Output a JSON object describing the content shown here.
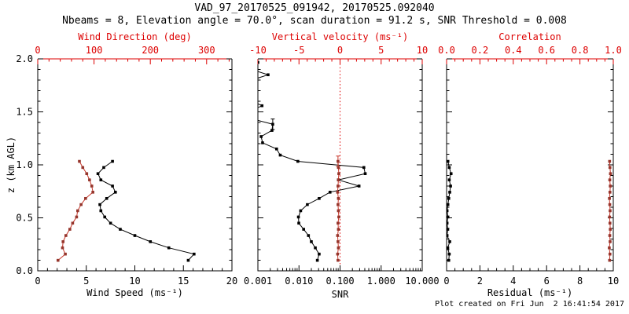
{
  "title": "VAD_97_20170525_091942, 20170525.092040",
  "subtitle": "Nbeams = 8, Elevation angle = 70.0°, scan duration = 91.2 s, SNR Threshold = 0.008",
  "footer": "Plot created on Fri Jun  2 16:41:54 2017",
  "colors": {
    "axis_red": "#dd0000",
    "series_red_line": "#c8372a",
    "series_red_marker": "#96352c",
    "black": "#000000",
    "background": "#ffffff"
  },
  "y_axis": {
    "label": "z (km AGL)",
    "range": [
      0,
      2
    ],
    "ticks": [
      0,
      0.5,
      1,
      1.5,
      2
    ],
    "tick_labels": [
      "0.0",
      "0.5",
      "1.0",
      "1.5",
      "2.0"
    ],
    "minor_step": 0.1
  },
  "chart_data": [
    {
      "name": "wind-panel",
      "type": "line",
      "x_bottom": {
        "label": "Wind Speed (ms⁻¹)",
        "range": [
          0,
          20
        ],
        "ticks": [
          0,
          5,
          10,
          15,
          20
        ],
        "tick_labels": [
          "0",
          "5",
          "10",
          "15",
          "20"
        ],
        "minor_step": 1,
        "color": "black"
      },
      "x_top": {
        "label": "Wind Direction (deg)",
        "range": [
          0,
          345
        ],
        "ticks": [
          0,
          100,
          200,
          300
        ],
        "tick_labels": [
          "0",
          "100",
          "200",
          "300"
        ],
        "minor_step": 20,
        "color": "red"
      },
      "series": [
        {
          "name": "wind-speed",
          "axis": "bottom",
          "color": "black",
          "z": [
            0.099,
            0.158,
            0.217,
            0.275,
            0.333,
            0.392,
            0.45,
            0.508,
            0.567,
            0.625,
            0.683,
            0.742,
            0.8,
            0.858,
            0.917,
            0.975,
            1.033
          ],
          "values": [
            15.5,
            16.1,
            13.5,
            11.6,
            10.0,
            8.5,
            7.5,
            6.9,
            6.5,
            6.4,
            7.1,
            8.0,
            7.7,
            6.5,
            6.2,
            6.8,
            7.7
          ]
        },
        {
          "name": "wind-direction",
          "axis": "top",
          "color": "red",
          "z": [
            0.099,
            0.158,
            0.217,
            0.275,
            0.333,
            0.392,
            0.45,
            0.508,
            0.567,
            0.625,
            0.683,
            0.742,
            0.8,
            0.858,
            0.917,
            0.975,
            1.033
          ],
          "values": [
            36,
            49,
            44,
            45,
            50,
            57,
            62,
            69,
            71,
            77,
            85,
            98,
            96,
            92,
            87,
            80,
            74
          ]
        }
      ]
    },
    {
      "name": "snr-panel",
      "type": "line",
      "x_bottom": {
        "label": "SNR",
        "scale": "log",
        "range": [
          0.001,
          10
        ],
        "ticks": [
          0.001,
          0.01,
          0.1,
          1,
          10
        ],
        "tick_labels": [
          "0.001",
          "0.010",
          "0.100",
          "1.000",
          "10.000"
        ],
        "color": "black"
      },
      "x_top": {
        "label": "Vertical velocity (ms⁻¹)",
        "range": [
          -10,
          10
        ],
        "ticks": [
          -10,
          -5,
          0,
          5,
          10
        ],
        "tick_labels": [
          "-10",
          "-5",
          "0",
          "5",
          "10"
        ],
        "minor_step": 1,
        "color": "red"
      },
      "zero_line": {
        "axis": "top",
        "value": 0,
        "style": "dotted",
        "color": "red"
      },
      "series": [
        {
          "name": "snr",
          "axis": "bottom",
          "color": "black",
          "z": [
            0.099,
            0.158,
            0.217,
            0.275,
            0.333,
            0.392,
            0.45,
            0.508,
            0.567,
            0.625,
            0.683,
            0.742,
            0.8,
            0.858,
            0.917,
            0.975,
            1.033,
            1.092,
            1.15,
            1.208,
            1.267,
            1.325,
            1.383,
            1.442,
            1.5,
            1.558,
            1.617,
            1.675,
            1.733,
            1.792,
            1.85,
            1.908,
            1.967
          ],
          "values": [
            0.028,
            0.031,
            0.025,
            0.02,
            0.017,
            0.013,
            0.0099,
            0.0097,
            0.011,
            0.016,
            0.031,
            0.057,
            0.29,
            0.091,
            0.41,
            0.38,
            0.0094,
            0.0035,
            0.00285,
            0.0013,
            0.0012,
            0.0022,
            0.0023,
            0.0006,
            0.0006,
            0.00126,
            0.0006,
            0.0006,
            0.0006,
            0.0006,
            0.00177,
            0.0006,
            0.001
          ],
          "error_bars": [
            {
              "z": 1.383,
              "value": 0.0023,
              "half_z": 0.05
            }
          ]
        },
        {
          "name": "vertical-velocity",
          "axis": "top",
          "color": "red",
          "z": [
            0.099,
            0.158,
            0.217,
            0.275,
            0.333,
            0.392,
            0.45,
            0.508,
            0.567,
            0.625,
            0.683,
            0.742,
            0.8,
            0.858,
            0.917,
            0.975,
            1.033
          ],
          "values": [
            -0.25,
            -0.3,
            -0.2,
            -0.25,
            -0.3,
            -0.2,
            -0.25,
            -0.15,
            -0.2,
            -0.25,
            -0.2,
            -0.3,
            -0.25,
            -0.2,
            -0.15,
            -0.2,
            -0.25
          ],
          "error_bars": [
            {
              "z": 1.033,
              "value": -0.25,
              "half_z": 0.05
            }
          ]
        }
      ]
    },
    {
      "name": "residual-panel",
      "type": "line",
      "x_bottom": {
        "label": "Residual (ms⁻¹)",
        "range": [
          0,
          10
        ],
        "ticks": [
          0,
          2,
          4,
          6,
          8,
          10
        ],
        "tick_labels": [
          "0",
          "2",
          "4",
          "6",
          "8",
          "10"
        ],
        "minor_step": 0.5,
        "color": "black"
      },
      "x_top": {
        "label": "Correlation",
        "range": [
          0,
          1
        ],
        "ticks": [
          0,
          0.2,
          0.4,
          0.6,
          0.8,
          1
        ],
        "tick_labels": [
          "0.0",
          "0.2",
          "0.4",
          "0.6",
          "0.8",
          "1.0"
        ],
        "minor_step": 0.05,
        "color": "red"
      },
      "series": [
        {
          "name": "residual",
          "axis": "bottom",
          "color": "black",
          "z": [
            0.099,
            0.158,
            0.217,
            0.275,
            0.333,
            0.392,
            0.45,
            0.508,
            0.567,
            0.625,
            0.683,
            0.742,
            0.8,
            0.858,
            0.917,
            0.975,
            1.033
          ],
          "values": [
            0.13,
            0.16,
            0.07,
            0.19,
            0.03,
            0.07,
            0.03,
            0.08,
            0.03,
            0.08,
            0.13,
            0.19,
            0.24,
            0.16,
            0.27,
            0.16,
            0.08
          ]
        },
        {
          "name": "correlation",
          "axis": "top",
          "color": "red",
          "z": [
            0.099,
            0.158,
            0.217,
            0.275,
            0.333,
            0.392,
            0.45,
            0.508,
            0.567,
            0.625,
            0.683,
            0.742,
            0.8,
            0.858,
            0.917,
            0.975,
            1.033
          ],
          "values": [
            0.978,
            0.98,
            0.976,
            0.981,
            0.979,
            0.982,
            0.98,
            0.978,
            0.981,
            0.979,
            0.977,
            0.98,
            0.982,
            0.979,
            0.983,
            0.98,
            0.978
          ]
        }
      ]
    }
  ]
}
